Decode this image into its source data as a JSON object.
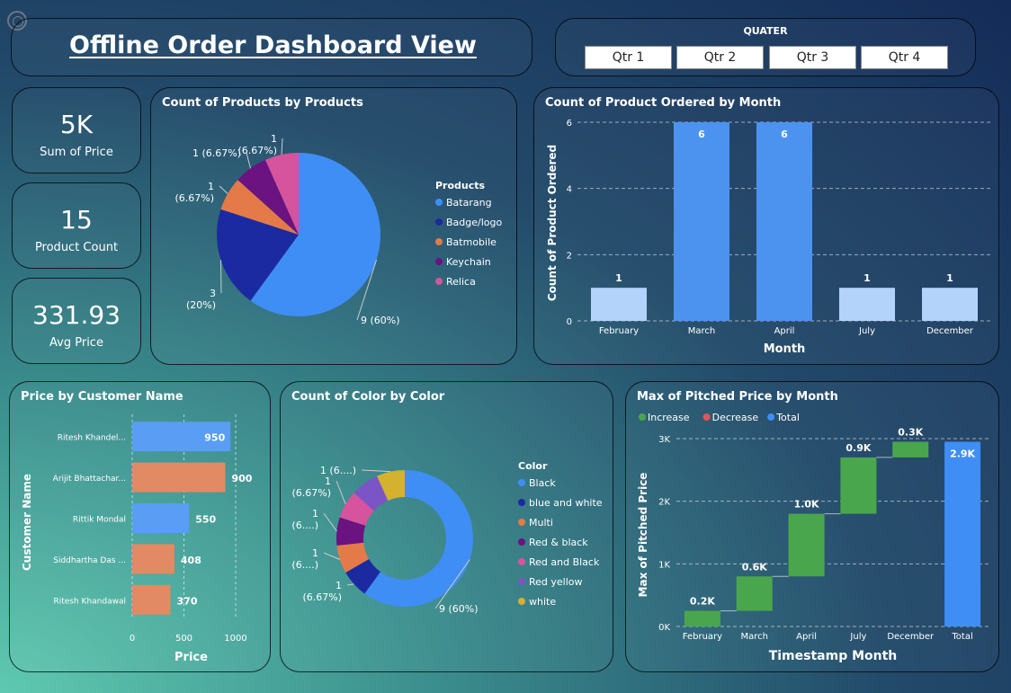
{
  "header": {
    "title": "Offline Order Dashboard View"
  },
  "slicer": {
    "label": "QUATER",
    "options": [
      "Qtr 1",
      "Qtr 2",
      "Qtr 3",
      "Qtr 4"
    ]
  },
  "kpis": [
    {
      "value": "5K",
      "label": "Sum of Price"
    },
    {
      "value": "15",
      "label": "Product Count"
    },
    {
      "value": "331.93",
      "label": "Avg Price"
    }
  ],
  "chart_data": [
    {
      "id": "products_pie",
      "type": "pie",
      "title": "Count of Products by Products",
      "legend_title": "Products",
      "legend_position": "right",
      "categories": [
        "Batarang",
        "Badge/logo",
        "Batmobile",
        "Keychain",
        "Relica"
      ],
      "values": [
        9,
        3,
        1,
        1,
        1
      ],
      "colors": [
        "#3f8ef5",
        "#1c2aa1",
        "#e47a48",
        "#6a1381",
        "#d6539d"
      ],
      "data_labels": [
        "9 (60%)",
        "3 (20%)",
        "1 (6.67%)",
        "1 (6.67%)",
        "1 (6.67%)"
      ]
    },
    {
      "id": "month_bar",
      "type": "bar",
      "title": "Count of Product Ordered by Month",
      "xlabel": "Month",
      "ylabel": "Count of Product Ordered",
      "categories": [
        "February",
        "March",
        "April",
        "July",
        "December"
      ],
      "values": [
        1,
        6,
        6,
        1,
        1
      ],
      "colors": [
        "#b3d3fb",
        "#4b93ef",
        "#4b93ef",
        "#b3d3fb",
        "#b3d3fb"
      ],
      "ylim": [
        0,
        6
      ],
      "yticks": [
        "0",
        "2",
        "4",
        "6"
      ],
      "grid": true
    },
    {
      "id": "customer_bar",
      "type": "bar",
      "orientation": "horizontal",
      "title": "Price by Customer Name",
      "xlabel": "Price",
      "ylabel": "Customer Name",
      "categories": [
        "Ritesh Khandel...",
        "Arijit Bhattachar...",
        "Rittik Mondal",
        "Siddhartha Das ...",
        "Ritesh Khandawal"
      ],
      "values": [
        950,
        900,
        550,
        408,
        370
      ],
      "colors": [
        "#5a9df4",
        "#e18a64",
        "#5a9df4",
        "#e18a64",
        "#e18a64"
      ],
      "xlim": [
        0,
        1000
      ],
      "xticks": [
        "0",
        "500",
        "1000"
      ],
      "grid": true
    },
    {
      "id": "color_donut",
      "type": "pie",
      "style": "donut",
      "title": "Count of Color by Color",
      "legend_title": "Color",
      "legend_position": "right",
      "categories": [
        "Black",
        "blue and white",
        "Multi",
        "Red & black",
        "Red and Black",
        "Red yellow",
        "white"
      ],
      "values": [
        9,
        1,
        1,
        1,
        1,
        1,
        1
      ],
      "colors": [
        "#3f8ef5",
        "#1c2aa1",
        "#e47a48",
        "#6a1381",
        "#d6539d",
        "#7b55c6",
        "#d4b12f"
      ],
      "data_labels": [
        "9 (60%)",
        "1\n(6.67%)",
        "1\n(6....)",
        "1\n(6....)",
        "1\n(6.67%)",
        "1\n(6....)",
        "1 (6....)"
      ]
    },
    {
      "id": "pitched_waterfall",
      "type": "bar",
      "style": "waterfall",
      "title": "Max of Pitched Price by Month",
      "xlabel": "Timestamp Month",
      "ylabel": "Max of Pitched Price",
      "legend": [
        "Increase",
        "Decrease",
        "Total"
      ],
      "legend_colors": [
        "#4aa64c",
        "#e0545a",
        "#3f8ef5"
      ],
      "legend_position": "top-left",
      "categories": [
        "February",
        "March",
        "April",
        "July",
        "December",
        "Total"
      ],
      "values": [
        250,
        550,
        1000,
        900,
        250,
        2950
      ],
      "data_labels": [
        "0.2K",
        "0.6K",
        "1.0K",
        "0.9K",
        "0.3K",
        "2.9K"
      ],
      "ylim": [
        0,
        3000
      ],
      "yticks": [
        "0K",
        "1K",
        "2K",
        "3K"
      ],
      "grid": true
    }
  ]
}
